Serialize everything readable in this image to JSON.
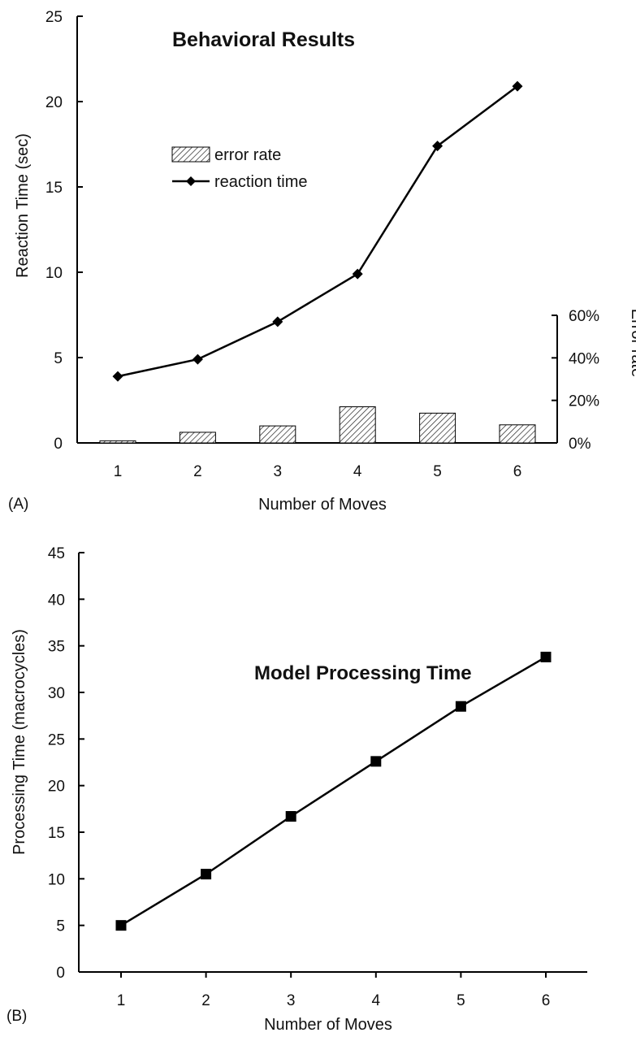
{
  "chart_data": [
    {
      "type": "line",
      "panel_label": "(A)",
      "title": "Behavioral Results",
      "xlabel": "Number of Moves",
      "ylabel": "Reaction Time (sec)",
      "y2label": "Error rate",
      "categories": [
        "1",
        "2",
        "3",
        "4",
        "5",
        "6"
      ],
      "ylim": [
        0,
        25
      ],
      "yticks": [
        "0",
        "5",
        "10",
        "15",
        "20",
        "25"
      ],
      "y2lim": [
        0,
        0.6
      ],
      "y2ticks": [
        "0%",
        "20%",
        "40%",
        "60%"
      ],
      "legend_position": "upper-left",
      "grid": false,
      "series": [
        {
          "name": "error rate",
          "type": "bar",
          "axis": "right",
          "values": [
            0.01,
            0.05,
            0.08,
            0.17,
            0.14,
            0.085
          ]
        },
        {
          "name": "reaction time",
          "type": "line",
          "marker": "diamond",
          "axis": "left",
          "values": [
            3.9,
            4.9,
            7.1,
            9.9,
            17.4,
            20.9
          ]
        }
      ]
    },
    {
      "type": "line",
      "panel_label": "(B)",
      "title": "Model Processing Time",
      "xlabel": "Number of Moves",
      "ylabel": "Processing Time (macrocycles)",
      "categories": [
        "1",
        "2",
        "3",
        "4",
        "5",
        "6"
      ],
      "ylim": [
        0,
        45
      ],
      "yticks": [
        "0",
        "5",
        "10",
        "15",
        "20",
        "25",
        "30",
        "35",
        "40",
        "45"
      ],
      "grid": false,
      "series": [
        {
          "type": "line",
          "marker": "square",
          "values": [
            5,
            10.5,
            16.7,
            22.6,
            28.5,
            33.8
          ]
        }
      ]
    }
  ]
}
